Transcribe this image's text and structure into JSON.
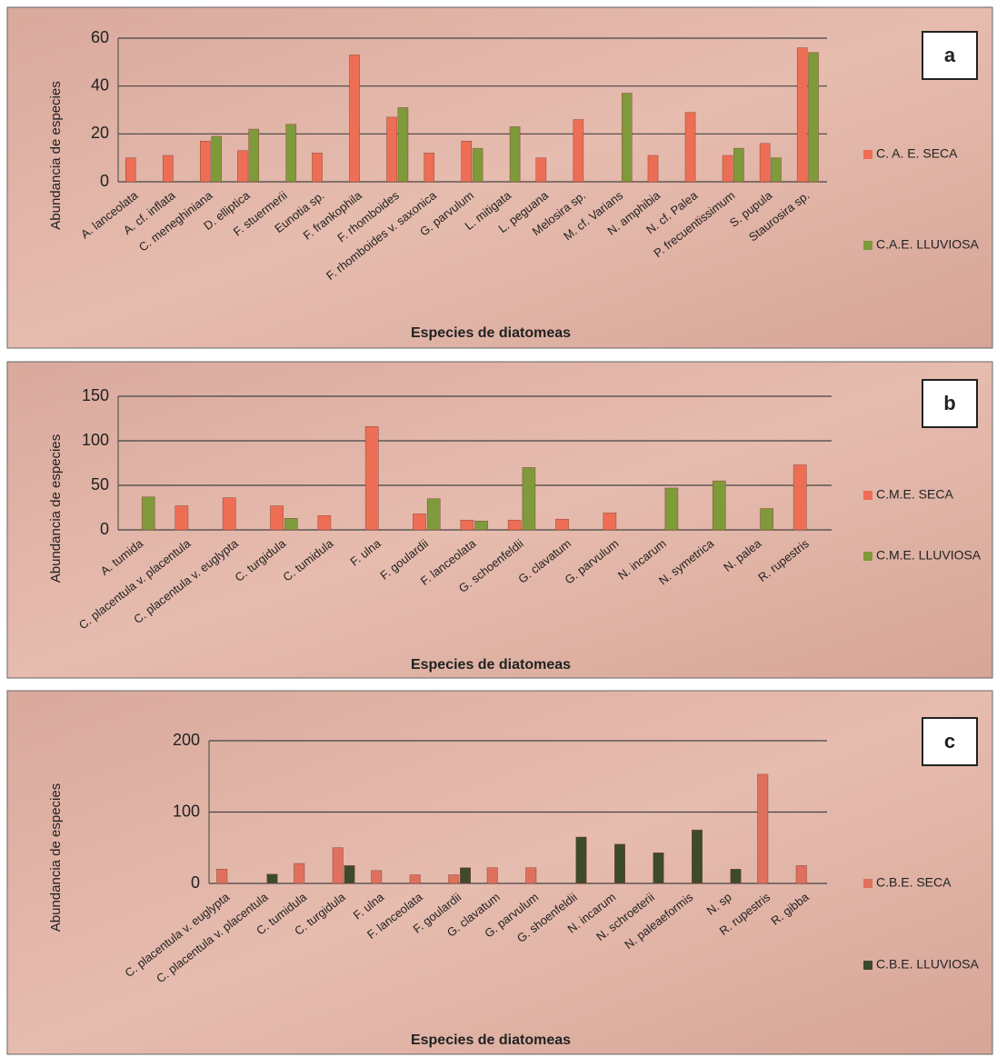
{
  "chart_data": [
    {
      "type": "bar",
      "panel_label": "a",
      "ylabel": "Abundancia de especies",
      "xlabel": "Especies de diatomeas",
      "categories": [
        "A. lanceolata",
        "A. cf. inflata",
        "C. meneghiniana",
        "D. elliptica",
        "F. stuermerii",
        "Eunotia sp.",
        "F. frankophila",
        "F. rhomboides",
        "F. rhomboides v. saxonica",
        "G. parvulum",
        "L. mitigata",
        "L. peguana",
        "Melosira sp.",
        "M. cf. Varians",
        "N. amphibia",
        "N. cf. Palea",
        "P. frecuentissimum",
        "S. pupula",
        "Staurosira sp."
      ],
      "series": [
        {
          "name": "C. A. E. SECA",
          "color": "#ee6e55",
          "values": [
            10,
            11,
            17,
            13,
            0,
            12,
            53,
            27,
            12,
            17,
            0,
            10,
            26,
            0,
            11,
            29,
            11,
            16,
            56
          ]
        },
        {
          "name": "C.A.E. LLUVIOSA",
          "color": "#7e9a3a",
          "values": [
            0,
            0,
            19,
            22,
            24,
            0,
            0,
            31,
            0,
            14,
            23,
            0,
            0,
            37,
            0,
            0,
            14,
            10,
            54
          ]
        }
      ],
      "ylim": [
        0,
        60
      ],
      "yticks": [
        0,
        20,
        40,
        60
      ],
      "grid": true
    },
    {
      "type": "bar",
      "panel_label": "b",
      "ylabel": "Abundancia de especies",
      "xlabel": "Especies de diatomeas",
      "categories": [
        "A. tumida",
        "C. placentula v. placentula",
        "C. placentula v. euglypta",
        "C. turgidula",
        "C. tumidula",
        "F. ulna",
        "F. goulardii",
        "F. lanceolata",
        "G. schoenfeldii",
        "G. clavatum",
        "G. parvulum",
        "N. incarum",
        "N. symetrica",
        "N. palea",
        "R. rupestris"
      ],
      "series": [
        {
          "name": "C.M.E. SECA",
          "color": "#ee6e55",
          "values": [
            0,
            27,
            36,
            27,
            16,
            116,
            18,
            11,
            11,
            12,
            19,
            0,
            0,
            0,
            73
          ]
        },
        {
          "name": "C.M.E. LLUVIOSA",
          "color": "#7e9a3a",
          "values": [
            37,
            0,
            0,
            13,
            0,
            0,
            35,
            10,
            70,
            0,
            0,
            47,
            55,
            24,
            0
          ]
        }
      ],
      "ylim": [
        0,
        150
      ],
      "yticks": [
        0,
        50,
        100,
        150
      ],
      "grid": true
    },
    {
      "type": "bar",
      "panel_label": "c",
      "ylabel": "Abundancia de especies",
      "xlabel": "Especies de diatomeas",
      "categories": [
        "C. placentula v. euglypta",
        "C. placentula v. placentula",
        "C. tumidula",
        "C. turgidula",
        "F. ulna",
        "F. lanceolata",
        "F. goulardii",
        "G. clavatum",
        "G. parvulum",
        "G. shoenfeldii",
        "N. incarum",
        "N. schroeterii",
        "N. paleaeformis",
        "N. sp",
        "R. rupestris",
        "R. gibba"
      ],
      "series": [
        {
          "name": "C.B.E. SECA",
          "color": "#e0705e",
          "values": [
            20,
            0,
            28,
            50,
            18,
            12,
            12,
            22,
            22,
            0,
            0,
            0,
            0,
            0,
            153,
            25
          ]
        },
        {
          "name": "C.B.E. LLUVIOSA",
          "color": "#3d4a2c",
          "values": [
            0,
            13,
            0,
            25,
            0,
            0,
            22,
            0,
            0,
            65,
            55,
            43,
            75,
            20,
            0,
            0
          ]
        }
      ],
      "ylim": [
        0,
        200
      ],
      "yticks": [
        0,
        100,
        200
      ],
      "grid": true
    }
  ]
}
